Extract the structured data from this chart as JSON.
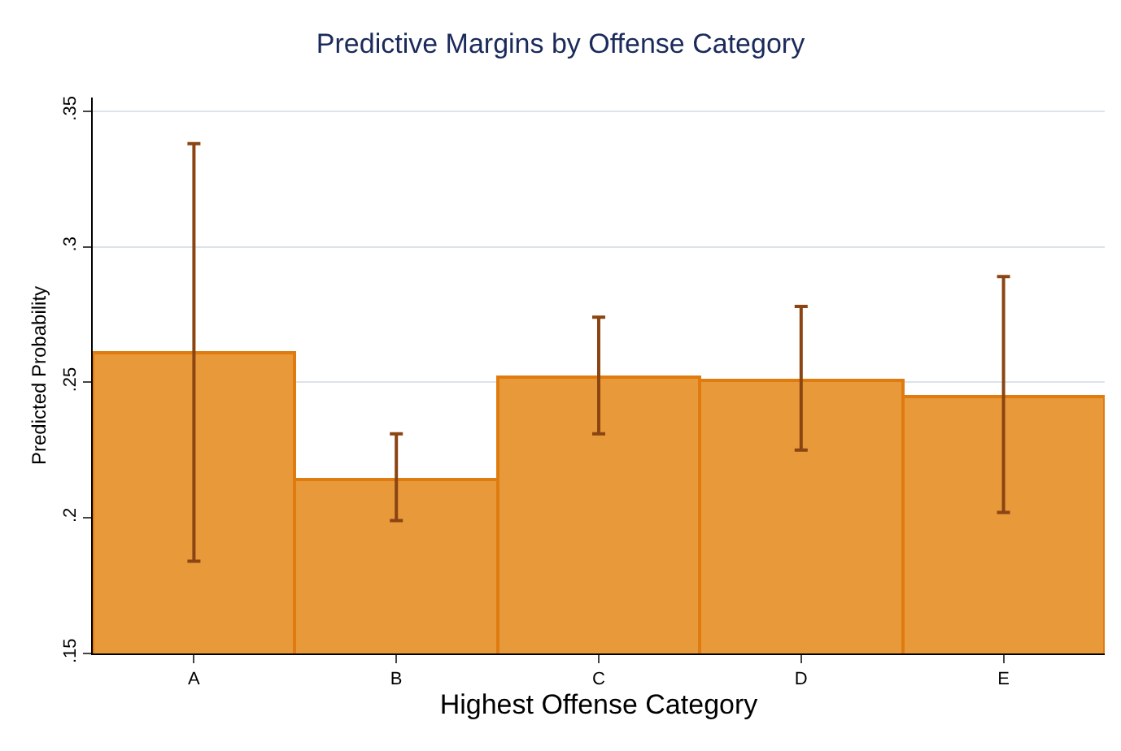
{
  "chart_data": {
    "type": "bar",
    "title": "Predictive Margins by Offense Category",
    "xlabel": "Highest Offense Category",
    "ylabel": "Predicted Probability",
    "categories": [
      "A",
      "B",
      "C",
      "D",
      "E"
    ],
    "values": [
      0.261,
      0.214,
      0.252,
      0.251,
      0.245
    ],
    "errors": [
      [
        0.184,
        0.338
      ],
      [
        0.199,
        0.231
      ],
      [
        0.231,
        0.274
      ],
      [
        0.225,
        0.278
      ],
      [
        0.202,
        0.289
      ]
    ],
    "color": "#e8993a",
    "ylim": [
      0.15,
      0.355
    ],
    "yticks": [
      {
        "value": 0.15,
        "label": ".15"
      },
      {
        "value": 0.2,
        "label": ".2"
      },
      {
        "value": 0.25,
        "label": ".25"
      },
      {
        "value": 0.3,
        "label": ".3"
      },
      {
        "value": 0.35,
        "label": ".35"
      }
    ],
    "grid": "y",
    "legend": false
  }
}
